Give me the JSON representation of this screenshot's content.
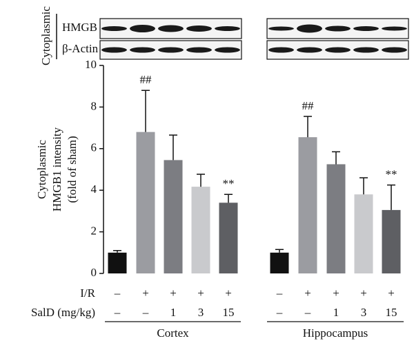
{
  "chart_data": {
    "type": "bar",
    "blot": {
      "compartment": "Cytoplasmic",
      "rows": [
        "HMGB",
        "β-Actin"
      ]
    },
    "ylabel": [
      "Cytoplasmic",
      "HMGB1 intensity",
      "(fold of sham)"
    ],
    "ylim": [
      0,
      10
    ],
    "yticks": [
      0,
      2,
      4,
      6,
      8,
      10
    ],
    "colors": [
      "#111111",
      "#9b9ca1",
      "#7c7d82",
      "#c9cacd",
      "#5e5f63"
    ],
    "groups": [
      {
        "name": "Cortex",
        "values": [
          1.0,
          6.8,
          5.45,
          4.17,
          3.4
        ],
        "errors": [
          0.1,
          2.0,
          1.2,
          0.6,
          0.4
        ],
        "annotations": [
          null,
          "##",
          null,
          null,
          "**"
        ]
      },
      {
        "name": "Hippocampus",
        "values": [
          1.0,
          6.55,
          5.25,
          3.8,
          3.05
        ],
        "errors": [
          0.15,
          1.0,
          0.6,
          0.8,
          1.2
        ],
        "annotations": [
          null,
          "##",
          null,
          null,
          "**"
        ]
      }
    ],
    "conditions": [
      {
        "label": "I/R",
        "cells": [
          "–",
          "+",
          "+",
          "+",
          "+"
        ]
      },
      {
        "label": "SalD (mg/kg)",
        "cells": [
          "–",
          "–",
          "1",
          "3",
          "15"
        ]
      }
    ]
  }
}
